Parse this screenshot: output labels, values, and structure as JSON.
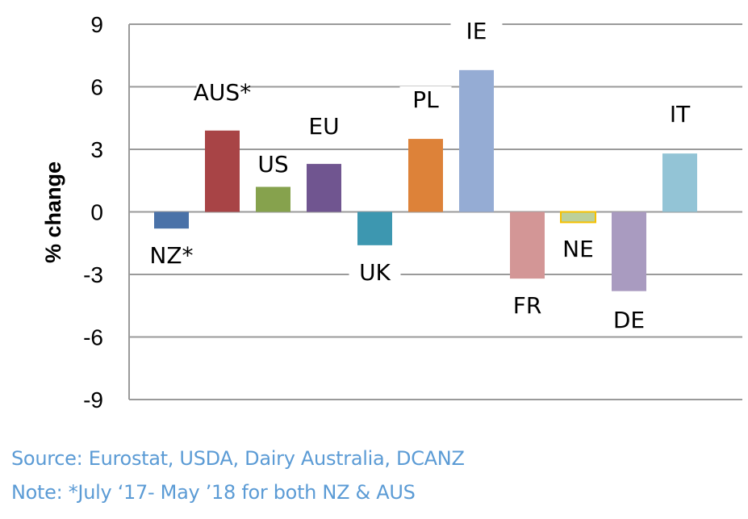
{
  "chart_data": {
    "type": "bar",
    "title": "",
    "xlabel": "",
    "ylabel": "% change",
    "ylim": [
      -9,
      9
    ],
    "yticks": [
      9,
      6,
      3,
      0,
      -3,
      -6,
      -9
    ],
    "grid": true,
    "categories": [
      "NZ*",
      "AUS*",
      "US",
      "EU",
      "UK",
      "PL",
      "IE",
      "FR",
      "NE",
      "DE",
      "IT"
    ],
    "values": [
      -0.8,
      3.9,
      1.2,
      2.3,
      -1.6,
      3.5,
      6.8,
      -3.2,
      -0.5,
      -3.8,
      2.8
    ],
    "colors": [
      "#4a72a8",
      "#a84446",
      "#86a24d",
      "#705590",
      "#3d97b0",
      "#dd8239",
      "#95acd4",
      "#d39696",
      "#bcd09a",
      "#a99bc0",
      "#93c4d6"
    ],
    "border_colors": {
      "NE": "#f5c000"
    }
  },
  "notes": {
    "source": "Source: Eurostat, USDA, Dairy Australia, DCANZ",
    "note": "Note: *July ‘17- May ’18 for both NZ & AUS"
  }
}
